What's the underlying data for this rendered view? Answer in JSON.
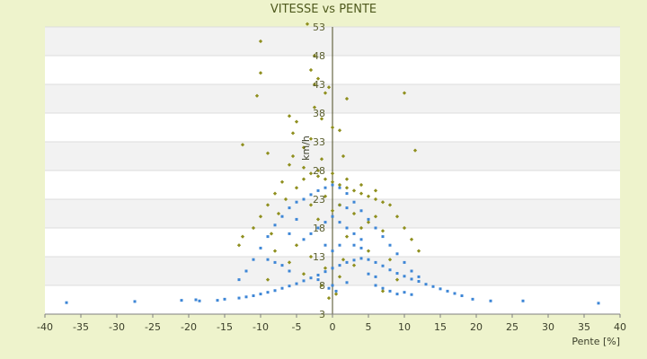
{
  "chart_data": {
    "type": "scatter",
    "title": "VITESSE vs PENTE",
    "xlabel": "Pente [%]",
    "ylabel": "km/h",
    "xlim": [
      -40,
      40
    ],
    "ylim": [
      3,
      53
    ],
    "x_ticks": [
      -40,
      -35,
      -30,
      -25,
      -20,
      -15,
      -10,
      -5,
      0,
      5,
      10,
      15,
      20,
      25,
      30,
      35,
      40
    ],
    "y_ticks": [
      3,
      8,
      13,
      18,
      23,
      28,
      33,
      38,
      43,
      48,
      53
    ],
    "grid": "horizontal bands",
    "legend": "none",
    "series": [
      {
        "color": "#3d86d6",
        "points": [
          [
            -37,
            5.0
          ],
          [
            -27.5,
            5.2
          ],
          [
            -21,
            5.4
          ],
          [
            -19,
            5.5
          ],
          [
            -18.5,
            5.3
          ],
          [
            -16,
            5.4
          ],
          [
            -15,
            5.6
          ],
          [
            -13,
            5.8
          ],
          [
            -12,
            6.0
          ],
          [
            26.5,
            5.3
          ],
          [
            37,
            4.9
          ],
          [
            22,
            5.3
          ],
          [
            19.5,
            5.6
          ],
          [
            18,
            6.2
          ],
          [
            17,
            6.6
          ],
          [
            16,
            7.0
          ],
          [
            15,
            7.4
          ],
          [
            14,
            7.8
          ],
          [
            13,
            8.2
          ],
          [
            12,
            8.7
          ],
          [
            11,
            9.1
          ],
          [
            10,
            9.6
          ],
          [
            9,
            10.1
          ],
          [
            -11,
            6.2
          ],
          [
            -10,
            6.5
          ],
          [
            -9,
            6.8
          ],
          [
            -8,
            7.1
          ],
          [
            -7,
            7.5
          ],
          [
            -6,
            7.9
          ],
          [
            -5,
            8.3
          ],
          [
            -4,
            8.8
          ],
          [
            -3,
            9.3
          ],
          [
            -2,
            9.8
          ],
          [
            -1,
            10.4
          ],
          [
            0,
            11.0
          ],
          [
            1,
            11.5
          ],
          [
            2,
            12.0
          ],
          [
            3,
            12.4
          ],
          [
            4,
            12.7
          ],
          [
            5,
            12.5
          ],
          [
            6,
            12.0
          ],
          [
            7,
            11.4
          ],
          [
            8,
            10.7
          ],
          [
            -13,
            9.0
          ],
          [
            -12,
            10.5
          ],
          [
            -11,
            12.5
          ],
          [
            -10,
            14.5
          ],
          [
            -9,
            16.5
          ],
          [
            -8,
            18.5
          ],
          [
            -7,
            20.0
          ],
          [
            -6,
            21.5
          ],
          [
            -5,
            22.5
          ],
          [
            -4,
            23.0
          ],
          [
            -3,
            23.8
          ],
          [
            -2,
            24.5
          ],
          [
            -1,
            25.0
          ],
          [
            0,
            25.5
          ],
          [
            1,
            25.0
          ],
          [
            2,
            24.0
          ],
          [
            3,
            22.5
          ],
          [
            4,
            21.0
          ],
          [
            5,
            19.5
          ],
          [
            6,
            18.0
          ],
          [
            7,
            16.5
          ],
          [
            8,
            15.0
          ],
          [
            9,
            13.5
          ],
          [
            10,
            12.0
          ],
          [
            11,
            10.5
          ],
          [
            12,
            9.5
          ],
          [
            -2,
            18.0
          ],
          [
            -1,
            19.0
          ],
          [
            0,
            20.0
          ],
          [
            1,
            19.0
          ],
          [
            2,
            18.0
          ],
          [
            -3,
            17.0
          ],
          [
            3,
            17.0
          ],
          [
            -4,
            16.0
          ],
          [
            4,
            16.0
          ],
          [
            0,
            14.0
          ],
          [
            -1,
            15.0
          ],
          [
            1,
            15.0
          ],
          [
            0,
            8.0
          ],
          [
            0.5,
            7.0
          ],
          [
            -0.5,
            7.5
          ],
          [
            2,
            8.5
          ],
          [
            -2,
            9.0
          ],
          [
            6,
            8.0
          ],
          [
            7,
            7.5
          ],
          [
            8,
            7.0
          ],
          [
            9,
            6.5
          ],
          [
            10,
            6.8
          ],
          [
            11,
            6.4
          ],
          [
            -6,
            10.5
          ],
          [
            -7,
            11.5
          ],
          [
            -8,
            12.0
          ],
          [
            -9,
            12.5
          ],
          [
            5,
            10.0
          ],
          [
            6,
            9.5
          ],
          [
            4,
            14.5
          ],
          [
            3,
            15.0
          ],
          [
            -5,
            19.5
          ],
          [
            -6,
            17.0
          ],
          [
            2,
            21.5
          ],
          [
            1,
            22.0
          ]
        ]
      },
      {
        "color": "#8f8f1e",
        "points": [
          [
            -3.5,
            53.5
          ],
          [
            -10,
            50.5
          ],
          [
            -2.5,
            48.0
          ],
          [
            -3,
            45.5
          ],
          [
            -10,
            45.0
          ],
          [
            -2,
            44.0
          ],
          [
            -2.5,
            43.0
          ],
          [
            -10.5,
            41.0
          ],
          [
            2,
            40.5
          ],
          [
            10,
            41.5
          ],
          [
            -6,
            37.5
          ],
          [
            -5,
            36.5
          ],
          [
            -1.5,
            37.0
          ],
          [
            0,
            35.5
          ],
          [
            1,
            35.0
          ],
          [
            -5.5,
            34.5
          ],
          [
            -12.5,
            32.5
          ],
          [
            11.5,
            31.5
          ],
          [
            -9,
            31.0
          ],
          [
            -5.5,
            30.5
          ],
          [
            -1.5,
            30.0
          ],
          [
            1.5,
            30.5
          ],
          [
            -6,
            29.0
          ],
          [
            -4,
            28.5
          ],
          [
            -3,
            27.5
          ],
          [
            -2,
            27.0
          ],
          [
            -1,
            26.5
          ],
          [
            0,
            26.0
          ],
          [
            1,
            25.5
          ],
          [
            2,
            25.0
          ],
          [
            3,
            24.5
          ],
          [
            4,
            24.0
          ],
          [
            5,
            23.5
          ],
          [
            6,
            23.0
          ],
          [
            7,
            22.5
          ],
          [
            -7,
            26.0
          ],
          [
            -8,
            24.0
          ],
          [
            -9,
            22.0
          ],
          [
            -10,
            20.0
          ],
          [
            -11,
            18.0
          ],
          [
            -12.5,
            16.5
          ],
          [
            -13,
            15.0
          ],
          [
            -8.5,
            17.0
          ],
          [
            -7.5,
            20.5
          ],
          [
            -6.5,
            23.0
          ],
          [
            -5,
            25.0
          ],
          [
            -4,
            26.5
          ],
          [
            -2,
            28.0
          ],
          [
            0,
            27.5
          ],
          [
            2,
            26.5
          ],
          [
            4,
            25.5
          ],
          [
            6,
            24.5
          ],
          [
            8,
            22.0
          ],
          [
            9,
            20.0
          ],
          [
            10,
            18.0
          ],
          [
            11,
            16.0
          ],
          [
            12,
            14.0
          ],
          [
            -3,
            22.0
          ],
          [
            -1,
            23.5
          ],
          [
            1,
            22.0
          ],
          [
            3,
            20.5
          ],
          [
            5,
            19.0
          ],
          [
            7,
            17.5
          ],
          [
            -5,
            15.0
          ],
          [
            -3,
            13.0
          ],
          [
            -1,
            11.0
          ],
          [
            1,
            9.5
          ],
          [
            3,
            11.5
          ],
          [
            5,
            14.0
          ],
          [
            -4,
            10.0
          ],
          [
            -6,
            12.0
          ],
          [
            2,
            16.5
          ],
          [
            4,
            18.0
          ],
          [
            6,
            20.0
          ],
          [
            -2,
            19.5
          ],
          [
            0,
            21.0
          ],
          [
            -1.5,
            8.0
          ],
          [
            0.5,
            6.5
          ],
          [
            -0.5,
            5.8
          ],
          [
            1.5,
            12.5
          ],
          [
            -9,
            9.0
          ],
          [
            -8,
            14.0
          ],
          [
            8,
            12.5
          ],
          [
            9,
            9.0
          ],
          [
            7,
            7.0
          ],
          [
            -4,
            32.0
          ],
          [
            -3,
            33.5
          ],
          [
            -2.5,
            39.0
          ],
          [
            -1,
            41.5
          ],
          [
            -0.5,
            42.5
          ]
        ]
      }
    ]
  }
}
